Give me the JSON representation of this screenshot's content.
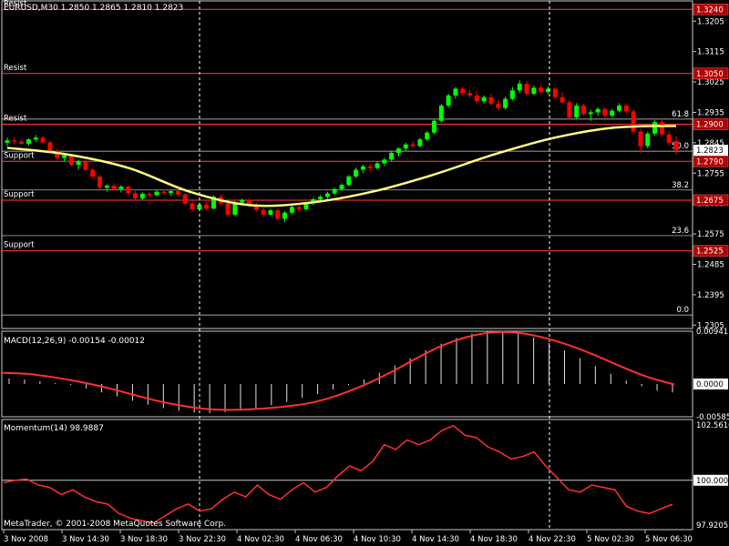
{
  "window": {
    "title": "EURUSD,M30  1.2850 1.2865 1.2810 1.2823",
    "copyright": "MetaTrader, © 2001-2008 MetaQuotes Software Corp."
  },
  "colors": {
    "background": "#000000",
    "bull_candle": "#00ff00",
    "bear_candle": "#ff0000",
    "moving_average": "#ffff80",
    "level_line": "#ff4040",
    "macd_signal": "#ff3030",
    "momentum": "#ff3030",
    "price_tag": "#b00000"
  },
  "chart_data": [
    {
      "panel": "price",
      "type": "candlestick",
      "symbol": "EURUSD",
      "timeframe": "M30",
      "last_price": "1.2823",
      "ylim": [
        1.2295,
        1.3265
      ],
      "y_tick_labels": [
        "1.3205",
        "1.3115",
        "1.3025",
        "1.2935",
        "1.2845",
        "1.2755",
        "1.2665",
        "1.2575",
        "1.2485",
        "1.2395",
        "1.2305"
      ],
      "candles": [
        [
          1.2845,
          1.286,
          1.2835,
          1.2852
        ],
        [
          1.2852,
          1.2862,
          1.284,
          1.2848
        ],
        [
          1.2848,
          1.2855,
          1.2838,
          1.2842
        ],
        [
          1.2842,
          1.2858,
          1.2836,
          1.2855
        ],
        [
          1.2855,
          1.2868,
          1.2848,
          1.286
        ],
        [
          1.286,
          1.2866,
          1.2842,
          1.2846
        ],
        [
          1.2846,
          1.285,
          1.2818,
          1.2822
        ],
        [
          1.2822,
          1.2826,
          1.2795,
          1.28
        ],
        [
          1.28,
          1.2815,
          1.279,
          1.2808
        ],
        [
          1.2808,
          1.2812,
          1.2775,
          1.278
        ],
        [
          1.278,
          1.2795,
          1.2765,
          1.279
        ],
        [
          1.279,
          1.2794,
          1.276,
          1.2765
        ],
        [
          1.2765,
          1.277,
          1.2738,
          1.2745
        ],
        [
          1.2745,
          1.275,
          1.2705,
          1.2712
        ],
        [
          1.2712,
          1.2722,
          1.27,
          1.2718
        ],
        [
          1.2718,
          1.2725,
          1.2703,
          1.2708
        ],
        [
          1.2708,
          1.272,
          1.2698,
          1.2715
        ],
        [
          1.2715,
          1.2718,
          1.269,
          1.2696
        ],
        [
          1.2696,
          1.2702,
          1.2672,
          1.268
        ],
        [
          1.268,
          1.2698,
          1.2675,
          1.2694
        ],
        [
          1.2694,
          1.27,
          1.2682,
          1.269
        ],
        [
          1.269,
          1.2705,
          1.2686,
          1.27
        ],
        [
          1.27,
          1.2708,
          1.2692,
          1.2696
        ],
        [
          1.2696,
          1.2704,
          1.2688,
          1.2702
        ],
        [
          1.2702,
          1.2705,
          1.2686,
          1.2692
        ],
        [
          1.2692,
          1.2696,
          1.2658,
          1.2665
        ],
        [
          1.2665,
          1.2672,
          1.264,
          1.2648
        ],
        [
          1.2648,
          1.2668,
          1.2642,
          1.2662
        ],
        [
          1.2662,
          1.267,
          1.2645,
          1.265
        ],
        [
          1.265,
          1.269,
          1.2648,
          1.2685
        ],
        [
          1.2685,
          1.2692,
          1.266,
          1.2666
        ],
        [
          1.2666,
          1.267,
          1.2625,
          1.2632
        ],
        [
          1.2632,
          1.2672,
          1.2628,
          1.2668
        ],
        [
          1.2668,
          1.268,
          1.266,
          1.2676
        ],
        [
          1.2676,
          1.2682,
          1.2655,
          1.266
        ],
        [
          1.266,
          1.2668,
          1.264,
          1.2646
        ],
        [
          1.2646,
          1.2652,
          1.2625,
          1.2632
        ],
        [
          1.2632,
          1.265,
          1.263,
          1.2645
        ],
        [
          1.2645,
          1.265,
          1.2615,
          1.262
        ],
        [
          1.262,
          1.2642,
          1.261,
          1.2638
        ],
        [
          1.2638,
          1.266,
          1.2632,
          1.2655
        ],
        [
          1.2655,
          1.2662,
          1.264,
          1.2648
        ],
        [
          1.2648,
          1.267,
          1.2644,
          1.2665
        ],
        [
          1.2665,
          1.2682,
          1.266,
          1.2678
        ],
        [
          1.2678,
          1.269,
          1.2668,
          1.2685
        ],
        [
          1.2685,
          1.27,
          1.2675,
          1.2695
        ],
        [
          1.2695,
          1.2712,
          1.269,
          1.2708
        ],
        [
          1.2708,
          1.2725,
          1.2702,
          1.272
        ],
        [
          1.272,
          1.275,
          1.2715,
          1.2745
        ],
        [
          1.2745,
          1.2772,
          1.274,
          1.2765
        ],
        [
          1.2765,
          1.278,
          1.2755,
          1.2775
        ],
        [
          1.2775,
          1.2782,
          1.276,
          1.277
        ],
        [
          1.277,
          1.279,
          1.2766,
          1.2784
        ],
        [
          1.2784,
          1.28,
          1.2776,
          1.2795
        ],
        [
          1.2795,
          1.282,
          1.279,
          1.2815
        ],
        [
          1.2815,
          1.2832,
          1.2805,
          1.2828
        ],
        [
          1.2828,
          1.2845,
          1.282,
          1.284
        ],
        [
          1.284,
          1.285,
          1.283,
          1.2835
        ],
        [
          1.2835,
          1.286,
          1.2832,
          1.2855
        ],
        [
          1.2855,
          1.288,
          1.285,
          1.2875
        ],
        [
          1.2875,
          1.2915,
          1.287,
          1.291
        ],
        [
          1.291,
          1.296,
          1.2905,
          1.2955
        ],
        [
          1.2955,
          1.299,
          1.295,
          1.2985
        ],
        [
          1.2985,
          1.301,
          1.2975,
          1.3005
        ],
        [
          1.3005,
          1.3012,
          1.2985,
          1.2992
        ],
        [
          1.2992,
          1.3002,
          1.2978,
          1.2985
        ],
        [
          1.2985,
          1.2995,
          1.296,
          1.2968
        ],
        [
          1.2968,
          1.2985,
          1.2962,
          1.298
        ],
        [
          1.298,
          1.299,
          1.2955,
          1.296
        ],
        [
          1.296,
          1.2972,
          1.294,
          1.2948
        ],
        [
          1.2948,
          1.2982,
          1.2942,
          1.2975
        ],
        [
          1.2975,
          1.301,
          1.297,
          1.3
        ],
        [
          1.3,
          1.303,
          1.2992,
          1.302
        ],
        [
          1.302,
          1.3028,
          1.2985,
          1.299
        ],
        [
          1.299,
          1.3015,
          1.2985,
          1.3008
        ],
        [
          1.3008,
          1.3018,
          1.2988,
          1.2995
        ],
        [
          1.2995,
          1.3012,
          1.299,
          1.3005
        ],
        [
          1.3005,
          1.301,
          1.2975,
          1.298
        ],
        [
          1.298,
          1.2995,
          1.296,
          1.2965
        ],
        [
          1.2965,
          1.2972,
          1.2915,
          1.292
        ],
        [
          1.292,
          1.2962,
          1.2915,
          1.2955
        ],
        [
          1.2955,
          1.296,
          1.2925,
          1.293
        ],
        [
          1.293,
          1.2942,
          1.291,
          1.2935
        ],
        [
          1.2935,
          1.295,
          1.2925,
          1.2945
        ],
        [
          1.2945,
          1.295,
          1.2918,
          1.2925
        ],
        [
          1.2925,
          1.2945,
          1.292,
          1.294
        ],
        [
          1.294,
          1.2962,
          1.2935,
          1.2955
        ],
        [
          1.2955,
          1.296,
          1.293,
          1.2938
        ],
        [
          1.2938,
          1.2945,
          1.287,
          1.2878
        ],
        [
          1.2878,
          1.2886,
          1.2815,
          1.2835
        ],
        [
          1.2835,
          1.2878,
          1.2828,
          1.2872
        ],
        [
          1.2872,
          1.2912,
          1.2866,
          1.2906
        ],
        [
          1.2906,
          1.2912,
          1.2865,
          1.287
        ],
        [
          1.287,
          1.288,
          1.2835,
          1.2845
        ],
        [
          1.285,
          1.2865,
          1.281,
          1.2823
        ]
      ],
      "moving_average": [
        1.283,
        1.281,
        1.277,
        1.27,
        1.266,
        1.2668,
        1.27,
        1.275,
        1.281,
        1.286,
        1.289,
        1.2895
      ],
      "levels": [
        {
          "label": "Resist",
          "price": 1.324,
          "tag": "1.3240",
          "tag_style": "red"
        },
        {
          "label": "Resist",
          "price": 1.305,
          "tag": "1.3050",
          "tag_style": "red"
        },
        {
          "label": "Resist",
          "price": 1.29,
          "tag": "1.2900",
          "tag_style": "red"
        },
        {
          "label": "Support",
          "price": 1.279,
          "tag": "1.2790",
          "tag_style": "red"
        },
        {
          "label": "Support",
          "price": 1.2675,
          "tag": "1.2675",
          "tag_style": "red"
        },
        {
          "label": "Support",
          "price": 1.2525,
          "tag": "1.2525",
          "tag_style": "red"
        }
      ],
      "fibonacci": [
        {
          "label": "61.8",
          "price": 1.2915
        },
        {
          "label": "50.0",
          "price": 1.282
        },
        {
          "label": "38.2",
          "price": 1.2705
        },
        {
          "label": "23.6",
          "price": 1.257
        },
        {
          "label": "0.0",
          "price": 1.2335
        }
      ],
      "last_price_tag": "1.2823"
    },
    {
      "panel": "macd",
      "type": "histogram+line",
      "label": "MACD(12,26,9) -0.00154 -0.00012",
      "ylim": [
        -0.00585,
        0.00941
      ],
      "y_tick_labels": [
        "0.00941",
        "0.0000",
        "-0.00585"
      ],
      "zero_tag": "0.0000",
      "histogram": [
        0.001,
        0.0008,
        0.0005,
        0.0002,
        -0.0002,
        -0.0008,
        -0.0015,
        -0.0022,
        -0.003,
        -0.0037,
        -0.0043,
        -0.0048,
        -0.0051,
        -0.0052,
        -0.005,
        -0.0047,
        -0.0043,
        -0.0038,
        -0.0032,
        -0.0025,
        -0.0018,
        -0.001,
        -0.0002,
        0.0008,
        0.002,
        0.0033,
        0.0046,
        0.006,
        0.0072,
        0.0082,
        0.009,
        0.0094,
        0.0094,
        0.009,
        0.0083,
        0.0073,
        0.006,
        0.0046,
        0.0032,
        0.0018,
        0.0006,
        -0.0004,
        -0.0012,
        -0.0015
      ],
      "signal": [
        0.002,
        0.0018,
        0.0012,
        0.0004,
        -0.0006,
        -0.0018,
        -0.003,
        -0.0039,
        -0.0045,
        -0.0046,
        -0.0044,
        -0.004,
        -0.0033,
        -0.002,
        -0.0002,
        0.002,
        0.0045,
        0.0068,
        0.0084,
        0.0092,
        0.0091,
        0.0082,
        0.0068,
        0.005,
        0.003,
        0.0012,
        -0.0001
      ]
    },
    {
      "panel": "momentum",
      "type": "line",
      "label": "Momentum(14) 98.9887",
      "ylim": [
        97.9205,
        102.5616
      ],
      "y_tick_labels": [
        "102.5616",
        "100.0000",
        "97.9205"
      ],
      "reference_tag": "100.0000",
      "values": [
        99.9,
        100.0,
        100.05,
        99.8,
        99.7,
        99.4,
        99.6,
        99.3,
        99.1,
        99.0,
        98.6,
        98.4,
        98.3,
        98.2,
        98.5,
        98.8,
        99.0,
        98.7,
        98.8,
        99.2,
        99.5,
        99.3,
        99.8,
        99.4,
        99.2,
        99.6,
        99.9,
        99.5,
        99.7,
        100.2,
        100.6,
        100.4,
        100.8,
        101.5,
        101.3,
        101.7,
        101.5,
        101.7,
        102.1,
        102.3,
        101.9,
        101.8,
        101.4,
        101.2,
        100.9,
        101.0,
        101.2,
        100.6,
        100.1,
        99.6,
        99.5,
        99.8,
        99.7,
        99.6,
        98.9,
        98.7,
        98.6,
        98.8,
        98.99
      ]
    }
  ],
  "x_axis": {
    "labels": [
      "3 Nov 2008",
      "3 Nov 14:30",
      "3 Nov 18:30",
      "3 Nov 22:30",
      "4 Nov 02:30",
      "4 Nov 06:30",
      "4 Nov 10:30",
      "4 Nov 14:30",
      "4 Nov 18:30",
      "4 Nov 22:30",
      "5 Nov 02:30",
      "5 Nov 06:30"
    ]
  }
}
